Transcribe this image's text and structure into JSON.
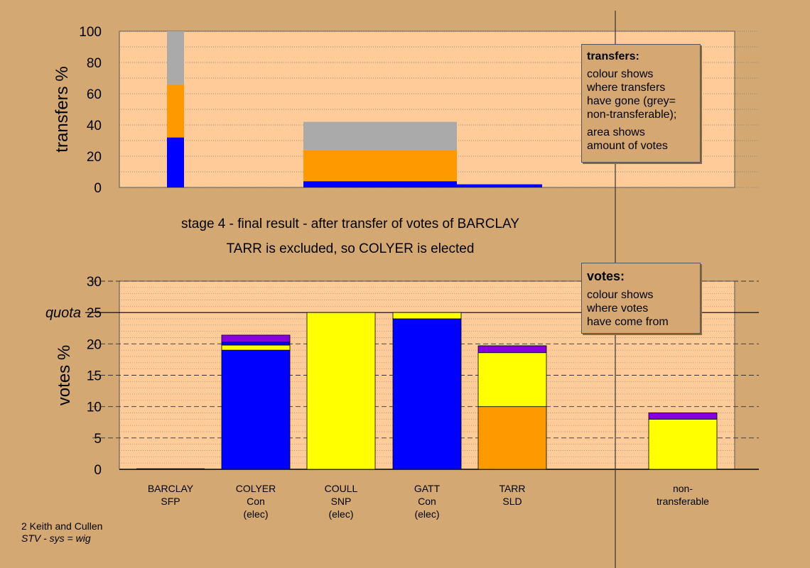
{
  "chart_data": [
    {
      "type": "bar",
      "stacked": true,
      "ylabel": "transfers %",
      "ylim": [
        0,
        100
      ],
      "yticks": [
        "0",
        "20",
        "40",
        "60",
        "80",
        "100"
      ],
      "grid": "dotted",
      "segments": [
        {
          "from": 0,
          "to": 0.1,
          "stack": [
            {
              "color": "#0000ff",
              "value": 32
            },
            {
              "color": "#ff9900",
              "value": 34
            },
            {
              "color": "#aaaaaa",
              "value": 34
            }
          ]
        },
        {
          "from": 0.8,
          "to": 1.7,
          "stack": [
            {
              "color": "#0000ff",
              "value": 4
            },
            {
              "color": "#ff9900",
              "value": 20
            },
            {
              "color": "#aaaaaa",
              "value": 18
            }
          ]
        },
        {
          "from": 1.7,
          "to": 2.2,
          "stack": [
            {
              "color": "#0000ff",
              "value": 2
            }
          ]
        }
      ],
      "legend_box": {
        "title": "transfers:",
        "line1": "colour shows\nwhere transfers\nhave gone (grey=\nnon-transferable);",
        "line2": "area shows\namount of votes"
      }
    },
    {
      "type": "bar",
      "stacked": true,
      "ylabel": "votes %",
      "ylim": [
        0,
        30
      ],
      "yticks": [
        "0",
        "5",
        "10",
        "15",
        "20",
        "25",
        "30"
      ],
      "quota": {
        "value": 25,
        "label": "quota"
      },
      "candidates": [
        {
          "name": "BARCLAY",
          "party": "SFP",
          "status": "",
          "stack": []
        },
        {
          "name": "COLYER",
          "party": "Con",
          "status": "(elec)",
          "stack": [
            {
              "color": "#0000ff",
              "value": 19
            },
            {
              "color": "#ffff00",
              "value": 0.8
            },
            {
              "color": "#0000ff",
              "value": 0.5
            },
            {
              "color": "#8800dd",
              "value": 1.1
            }
          ]
        },
        {
          "name": "COULL",
          "party": "SNP",
          "status": "(elec)",
          "stack": [
            {
              "color": "#ffff00",
              "value": 25
            }
          ]
        },
        {
          "name": "GATT",
          "party": "Con",
          "status": "(elec)",
          "stack": [
            {
              "color": "#0000ff",
              "value": 24
            },
            {
              "color": "#ffff00",
              "value": 1
            }
          ]
        },
        {
          "name": "TARR",
          "party": "SLD",
          "status": "",
          "stack": [
            {
              "color": "#ff9900",
              "value": 10
            },
            {
              "color": "#ffff00",
              "value": 8.6
            },
            {
              "color": "#8800dd",
              "value": 1.1
            }
          ]
        },
        {
          "name": "non-",
          "party": "transferable",
          "status": "",
          "stack": [
            {
              "color": "#ffff00",
              "value": 8
            },
            {
              "color": "#8800dd",
              "value": 1
            }
          ]
        }
      ],
      "legend_box": {
        "title": "votes:",
        "line1": "colour shows\nwhere votes\nhave come from"
      }
    }
  ],
  "headings": {
    "line1": "stage 4 - final result - after transfer of votes of BARCLAY",
    "line2": "TARR is excluded, so COLYER is elected"
  },
  "credit": {
    "line1": "2 Keith and Cullen",
    "line2": "STV - sys = wig"
  },
  "colors": {
    "background": "#d4a872",
    "plot_top": "#ffcc99",
    "plot_bottom": "#ffcc99"
  }
}
